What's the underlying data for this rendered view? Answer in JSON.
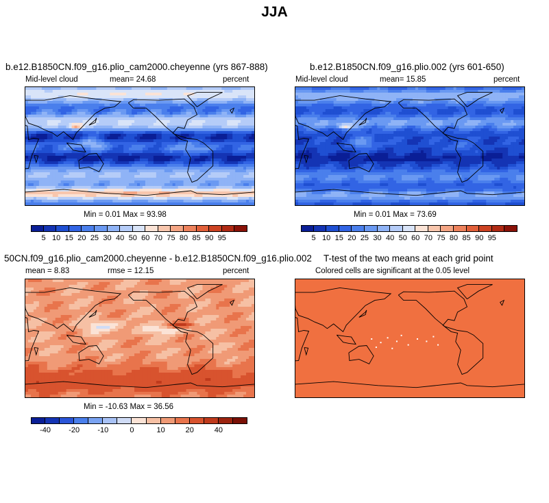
{
  "suptitle": "JJA",
  "panels": [
    {
      "title": "b.e12.B1850CN.f09_g16.plio_cam2000.cheyenne (yrs 867-888)",
      "left_label": "Mid-level cloud",
      "mean_label": "mean=  24.68",
      "units": "percent",
      "minmax": "Min =   0.01 Max =  93.98",
      "field": "cloud_a"
    },
    {
      "title": "b.e12.B1850CN.f09_g16.plio.002 (yrs 601-650)",
      "left_label": "Mid-level cloud",
      "mean_label": "mean=  15.85",
      "units": "percent",
      "minmax": "Min =   0.01 Max =  73.69",
      "field": "cloud_b"
    },
    {
      "title": "50CN.f09_g16.plio_cam2000.cheyenne - b.e12.B1850CN.f09_g16.plio.002",
      "left_label": "mean =    8.83",
      "mean_label": "rmse =  12.15",
      "units": "percent",
      "minmax": "Min = -10.63 Max =  36.56",
      "field": "diff"
    },
    {
      "title": "T-test of the two means at each grid point",
      "left_label": "Colored cells are significant at the 0.05 level",
      "field": "ttest"
    }
  ],
  "colorbar_cloud": {
    "colors": [
      "#0a1e96",
      "#1434b4",
      "#1f4fd2",
      "#3264e4",
      "#4a7fec",
      "#6a99f2",
      "#8fb3f6",
      "#b5ccf8",
      "#d9e4f8",
      "#fbe3d6",
      "#f8c6ad",
      "#f4a584",
      "#ee825c",
      "#e2603a",
      "#cc4222",
      "#b02a14",
      "#8a1208"
    ],
    "tick_labels": [
      "5",
      "10",
      "15",
      "20",
      "25",
      "30",
      "40",
      "50",
      "60",
      "70",
      "75",
      "80",
      "85",
      "90",
      "95"
    ]
  },
  "colorbar_diff": {
    "colors": [
      "#0a1e96",
      "#1434b4",
      "#2a55d8",
      "#4a7fec",
      "#7aa3f2",
      "#a8c2f6",
      "#d0dcf6",
      "#fbe3d6",
      "#f6c0a4",
      "#f09a76",
      "#e8744c",
      "#d8532e",
      "#bf3a1c",
      "#9c2410",
      "#7a1006"
    ],
    "tick_labels": [
      "-40",
      "-20",
      "-10",
      "0",
      "10",
      "20",
      "40"
    ]
  },
  "ttest_color": "#f07040"
}
